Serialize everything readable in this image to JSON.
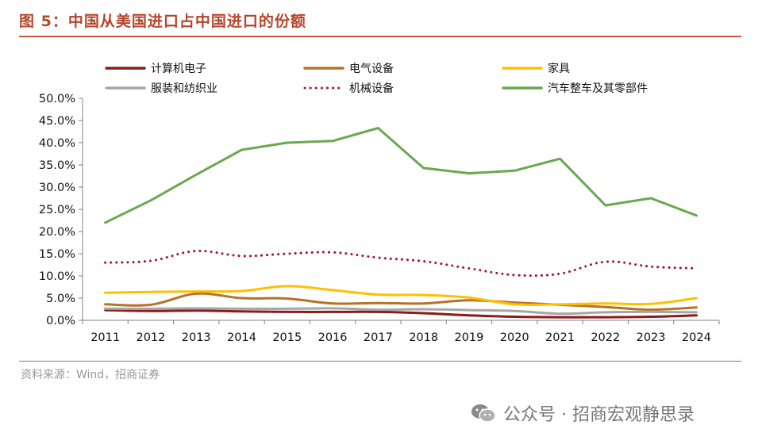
{
  "figure": {
    "title": "图 5：中国从美国进口占中国进口的份额",
    "source": "资料来源：Wind，招商证券",
    "watermark": "公众号 · 招商宏观静思录",
    "watermark_icon": "wechat-icon"
  },
  "chart_data": {
    "type": "line",
    "title": "图 5：中国从美国进口占中国进口的份额",
    "xlabel": "",
    "ylabel": "",
    "ylim": [
      0,
      50
    ],
    "y_ticks": [
      "0.0%",
      "5.0%",
      "10.0%",
      "15.0%",
      "20.0%",
      "25.0%",
      "30.0%",
      "35.0%",
      "40.0%",
      "45.0%",
      "50.0%"
    ],
    "categories": [
      "2011",
      "2012",
      "2013",
      "2014",
      "2015",
      "2016",
      "2017",
      "2018",
      "2019",
      "2020",
      "2021",
      "2022",
      "2023",
      "2024"
    ],
    "legend_position": "top",
    "series": [
      {
        "name": "计算机电子",
        "color": "#8b1a1a",
        "style": "solid",
        "values": [
          2.3,
          2.1,
          2.2,
          2.0,
          1.9,
          1.9,
          1.9,
          1.6,
          1.1,
          0.8,
          0.7,
          0.7,
          0.8,
          1.1
        ]
      },
      {
        "name": "电气设备",
        "color": "#b5722b",
        "style": "solid",
        "values": [
          3.6,
          3.5,
          6.0,
          5.0,
          4.9,
          3.8,
          3.9,
          3.8,
          4.5,
          4.0,
          3.5,
          3.0,
          2.4,
          2.9
        ]
      },
      {
        "name": "家具",
        "color": "#ffc000",
        "style": "solid",
        "values": [
          6.2,
          6.4,
          6.5,
          6.6,
          7.7,
          6.8,
          5.8,
          5.7,
          5.1,
          3.6,
          3.6,
          3.8,
          3.7,
          5.0
        ]
      },
      {
        "name": "服装和纺织业",
        "color": "#a6a6a6",
        "style": "solid",
        "values": [
          2.6,
          2.6,
          2.7,
          2.6,
          2.6,
          2.7,
          2.4,
          2.5,
          2.3,
          2.1,
          1.5,
          1.8,
          1.9,
          1.8
        ]
      },
      {
        "name": "机械设备",
        "color": "#a5122a",
        "style": "dotted",
        "values": [
          13.0,
          13.4,
          15.6,
          14.5,
          15.0,
          15.3,
          14.1,
          13.3,
          11.7,
          10.2,
          10.5,
          13.2,
          12.1,
          11.7
        ]
      },
      {
        "name": "汽车整车及其零部件",
        "color": "#6aa84f",
        "style": "solid",
        "values": [
          22.0,
          27.0,
          32.8,
          38.4,
          40.0,
          40.4,
          43.3,
          34.3,
          33.1,
          33.7,
          36.4,
          25.9,
          27.5,
          23.6
        ]
      }
    ]
  }
}
